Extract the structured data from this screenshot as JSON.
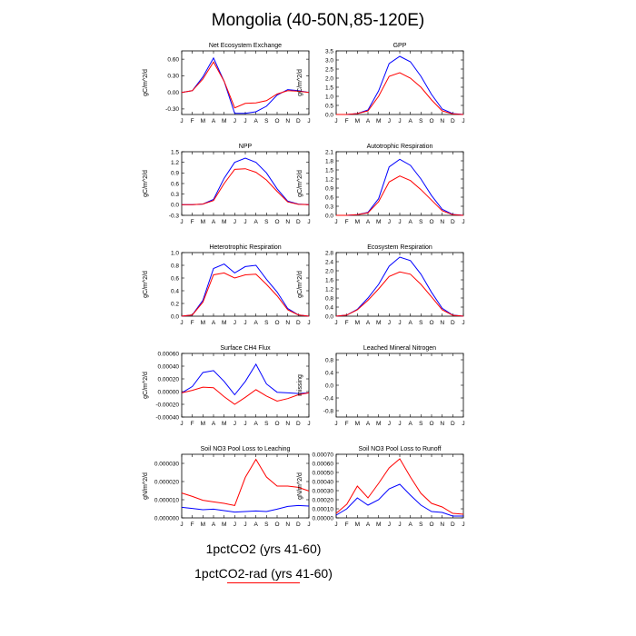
{
  "figure": {
    "title": "Mongolia (40-50N,85-120E)",
    "legend": [
      {
        "label": "1pctCO2 (yrs 41-60)",
        "color": "#0000ff"
      },
      {
        "label": "1pctCO2-rad (yrs 41-60)",
        "color": "#ff0000"
      }
    ]
  },
  "chart_data": [
    {
      "type": "line",
      "title": "Net Ecosystem Exchange",
      "ylabel": "gC/m^2/d",
      "categories": [
        "J",
        "F",
        "M",
        "A",
        "M",
        "J",
        "J",
        "A",
        "S",
        "O",
        "N",
        "D",
        "J"
      ],
      "ylim": [
        -0.4,
        0.75
      ],
      "yticks": [
        "-0.30",
        "0.00",
        "0.30",
        "0.60"
      ],
      "ytick_values": [
        -0.3,
        0.0,
        0.3,
        0.6
      ],
      "series": [
        {
          "color": "#0000ff",
          "values": [
            0.0,
            0.03,
            0.28,
            0.62,
            0.2,
            -0.38,
            -0.38,
            -0.35,
            -0.25,
            -0.05,
            0.05,
            0.03,
            0.0
          ]
        },
        {
          "color": "#ff0000",
          "values": [
            0.0,
            0.03,
            0.24,
            0.55,
            0.2,
            -0.28,
            -0.2,
            -0.19,
            -0.15,
            -0.03,
            0.03,
            0.02,
            0.0
          ]
        }
      ]
    },
    {
      "type": "line",
      "title": "GPP",
      "ylabel": "gC/m^2/d",
      "categories": [
        "J",
        "F",
        "M",
        "A",
        "M",
        "J",
        "J",
        "A",
        "S",
        "O",
        "N",
        "D",
        "J"
      ],
      "ylim": [
        0,
        3.5
      ],
      "yticks": [
        "0.0",
        "0.5",
        "1.0",
        "1.5",
        "2.0",
        "2.5",
        "3.0",
        "3.5"
      ],
      "ytick_values": [
        0.0,
        0.5,
        1.0,
        1.5,
        2.0,
        2.5,
        3.0,
        3.5
      ],
      "series": [
        {
          "color": "#0000ff",
          "values": [
            0.0,
            0.0,
            0.05,
            0.25,
            1.3,
            2.8,
            3.2,
            2.9,
            2.1,
            1.1,
            0.3,
            0.05,
            0.0
          ]
        },
        {
          "color": "#ff0000",
          "values": [
            0.0,
            0.0,
            0.05,
            0.2,
            1.0,
            2.1,
            2.3,
            2.0,
            1.5,
            0.8,
            0.2,
            0.03,
            0.0
          ]
        }
      ]
    },
    {
      "type": "line",
      "title": "NPP",
      "ylabel": "gC/m^2/d",
      "categories": [
        "J",
        "F",
        "M",
        "A",
        "M",
        "J",
        "J",
        "A",
        "S",
        "O",
        "N",
        "D",
        "J"
      ],
      "ylim": [
        -0.3,
        1.5
      ],
      "yticks": [
        "-0.3",
        "0.0",
        "0.3",
        "0.6",
        "0.9",
        "1.2",
        "1.5"
      ],
      "ytick_values": [
        -0.3,
        0.0,
        0.3,
        0.6,
        0.9,
        1.2,
        1.5
      ],
      "series": [
        {
          "color": "#0000ff",
          "values": [
            0.0,
            0.0,
            0.02,
            0.15,
            0.75,
            1.2,
            1.32,
            1.2,
            0.9,
            0.45,
            0.1,
            0.02,
            0.0
          ]
        },
        {
          "color": "#ff0000",
          "values": [
            0.0,
            0.0,
            0.02,
            0.12,
            0.6,
            1.0,
            1.02,
            0.92,
            0.7,
            0.38,
            0.08,
            0.01,
            0.0
          ]
        }
      ]
    },
    {
      "type": "line",
      "title": "Autotrophic Respiration",
      "ylabel": "gC/m^2/d",
      "categories": [
        "J",
        "F",
        "M",
        "A",
        "M",
        "J",
        "J",
        "A",
        "S",
        "O",
        "N",
        "D",
        "J"
      ],
      "ylim": [
        0,
        2.1
      ],
      "yticks": [
        "0.0",
        "0.3",
        "0.6",
        "0.9",
        "1.2",
        "1.5",
        "1.8",
        "2.1"
      ],
      "ytick_values": [
        0.0,
        0.3,
        0.6,
        0.9,
        1.2,
        1.5,
        1.8,
        2.1
      ],
      "series": [
        {
          "color": "#0000ff",
          "values": [
            0.0,
            0.0,
            0.02,
            0.1,
            0.55,
            1.6,
            1.85,
            1.65,
            1.2,
            0.65,
            0.2,
            0.03,
            0.0
          ]
        },
        {
          "color": "#ff0000",
          "values": [
            0.0,
            0.0,
            0.02,
            0.08,
            0.45,
            1.1,
            1.3,
            1.15,
            0.85,
            0.5,
            0.15,
            0.02,
            0.0
          ]
        }
      ]
    },
    {
      "type": "line",
      "title": "Heterotrophic Respiration",
      "ylabel": "gC/m^2/d",
      "categories": [
        "J",
        "F",
        "M",
        "A",
        "M",
        "J",
        "J",
        "A",
        "S",
        "O",
        "N",
        "D",
        "J"
      ],
      "ylim": [
        0,
        1.0
      ],
      "yticks": [
        "0.0",
        "0.2",
        "0.4",
        "0.6",
        "0.8",
        "1.0"
      ],
      "ytick_values": [
        0.0,
        0.2,
        0.4,
        0.6,
        0.8,
        1.0
      ],
      "series": [
        {
          "color": "#0000ff",
          "values": [
            0.0,
            0.02,
            0.25,
            0.75,
            0.82,
            0.68,
            0.78,
            0.8,
            0.58,
            0.38,
            0.12,
            0.02,
            0.0
          ]
        },
        {
          "color": "#ff0000",
          "values": [
            0.0,
            0.02,
            0.22,
            0.65,
            0.68,
            0.6,
            0.65,
            0.66,
            0.5,
            0.32,
            0.1,
            0.02,
            0.0
          ]
        }
      ]
    },
    {
      "type": "line",
      "title": "Ecosystem Respiration",
      "ylabel": "gC/m^2/d",
      "categories": [
        "J",
        "F",
        "M",
        "A",
        "M",
        "J",
        "J",
        "A",
        "S",
        "O",
        "N",
        "D",
        "J"
      ],
      "ylim": [
        0,
        2.8
      ],
      "yticks": [
        "0.0",
        "0.4",
        "0.8",
        "1.2",
        "1.6",
        "2.0",
        "2.4",
        "2.8"
      ],
      "ytick_values": [
        0.0,
        0.4,
        0.8,
        1.2,
        1.6,
        2.0,
        2.4,
        2.8
      ],
      "series": [
        {
          "color": "#0000ff",
          "values": [
            0.0,
            0.05,
            0.3,
            0.8,
            1.4,
            2.2,
            2.6,
            2.45,
            1.85,
            1.05,
            0.35,
            0.05,
            0.0
          ]
        },
        {
          "color": "#ff0000",
          "values": [
            0.0,
            0.05,
            0.28,
            0.7,
            1.2,
            1.75,
            1.95,
            1.85,
            1.4,
            0.85,
            0.28,
            0.04,
            0.0
          ]
        }
      ]
    },
    {
      "type": "line",
      "title": "Surface CH4 Flux",
      "ylabel": "gC/m^2/d",
      "categories": [
        "J",
        "F",
        "M",
        "A",
        "M",
        "J",
        "J",
        "A",
        "S",
        "O",
        "N",
        "D",
        "J"
      ],
      "ylim": [
        -0.0004,
        0.0006
      ],
      "yticks": [
        "-0.00040",
        "-0.00020",
        "0.00000",
        "0.00020",
        "0.00040",
        "0.00060"
      ],
      "ytick_values": [
        -0.0004,
        -0.0002,
        0.0,
        0.0002,
        0.0004,
        0.0006
      ],
      "series": [
        {
          "color": "#0000ff",
          "values": [
            -2e-05,
            8e-05,
            0.0003,
            0.00033,
            0.00016,
            -5e-05,
            0.00016,
            0.00043,
            0.00012,
            -1e-05,
            -2e-05,
            -3e-05,
            -2e-05
          ]
        },
        {
          "color": "#ff0000",
          "values": [
            -2e-05,
            2e-05,
            7e-05,
            6e-05,
            -8e-05,
            -0.0002,
            -9e-05,
            3e-05,
            -7e-05,
            -0.00015,
            -0.00011,
            -5e-05,
            -2e-05
          ]
        }
      ]
    },
    {
      "type": "line",
      "title": "Leached Mineral Nitrogen",
      "ylabel": "missing",
      "categories": [
        "J",
        "F",
        "M",
        "A",
        "M",
        "J",
        "J",
        "A",
        "S",
        "O",
        "N",
        "D",
        "J"
      ],
      "ylim": [
        -1.0,
        1.0
      ],
      "yticks": [
        "-0.8",
        "-0.4",
        "0.0",
        "0.4",
        "0.8"
      ],
      "ytick_values": [
        -0.8,
        -0.4,
        0.0,
        0.4,
        0.8
      ],
      "series": []
    },
    {
      "type": "line",
      "title": "Soil NO3 Pool Loss to Leaching",
      "ylabel": "gN/m^2/d",
      "categories": [
        "J",
        "F",
        "M",
        "A",
        "M",
        "J",
        "J",
        "A",
        "S",
        "O",
        "N",
        "D",
        "J"
      ],
      "ylim": [
        0,
        3.5e-05
      ],
      "yticks": [
        "0.000000",
        "0.000010",
        "0.000020",
        "0.000030"
      ],
      "ytick_values": [
        0.0,
        1e-05,
        2e-05,
        3e-05
      ],
      "series": [
        {
          "color": "#0000ff",
          "values": [
            5.8e-06,
            5.2e-06,
            4.5e-06,
            4.8e-06,
            4e-06,
            3.2e-06,
            3.5e-06,
            3.8e-06,
            3.5e-06,
            4.8e-06,
            6.3e-06,
            6.8e-06,
            6.5e-06
          ]
        },
        {
          "color": "#ff0000",
          "values": [
            1.37e-05,
            1.18e-05,
            9.7e-06,
            8.8e-06,
            8e-06,
            6.8e-06,
            2.23e-05,
            3.22e-05,
            2.25e-05,
            1.75e-05,
            1.75e-05,
            1.68e-05,
            1.48e-05
          ]
        }
      ]
    },
    {
      "type": "line",
      "title": "Soil NO3 Pool Loss to Runoff",
      "ylabel": "gN/m^2/d",
      "categories": [
        "J",
        "F",
        "M",
        "A",
        "M",
        "J",
        "J",
        "A",
        "S",
        "O",
        "N",
        "D",
        "J"
      ],
      "ylim": [
        0,
        0.0007
      ],
      "yticks": [
        "0.00000",
        "0.00010",
        "0.00020",
        "0.00030",
        "0.00040",
        "0.00050",
        "0.00060",
        "0.00070"
      ],
      "ytick_values": [
        0.0,
        0.0001,
        0.0002,
        0.0003,
        0.0004,
        0.0005,
        0.0006,
        0.0007
      ],
      "series": [
        {
          "color": "#0000ff",
          "values": [
            3e-05,
            0.0001,
            0.00022,
            0.00014,
            0.0002,
            0.00032,
            0.00037,
            0.00025,
            0.00014,
            7e-05,
            6e-05,
            2e-05,
            2e-05
          ]
        },
        {
          "color": "#ff0000",
          "values": [
            5e-05,
            0.00015,
            0.00035,
            0.00022,
            0.00038,
            0.00055,
            0.00065,
            0.00045,
            0.00027,
            0.00016,
            0.00012,
            5e-05,
            4e-05
          ]
        }
      ]
    }
  ]
}
